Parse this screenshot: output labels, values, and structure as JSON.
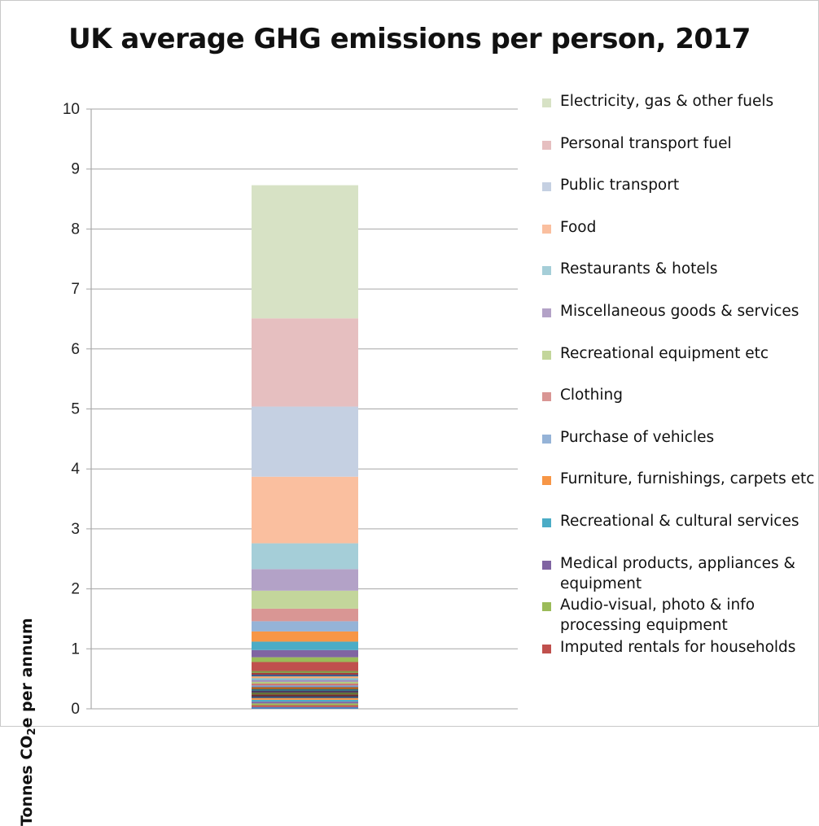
{
  "chart_data": {
    "type": "bar",
    "stacked": true,
    "title": "UK average GHG emissions per person, 2017",
    "ylabel_main": "Tonnes CO",
    "ylabel_sub": "2",
    "ylabel_rest": "e per annum",
    "xlabel": "",
    "ylim": [
      0,
      10
    ],
    "y_ticks": [
      "0",
      "1",
      "2",
      "3",
      "4",
      "5",
      "6",
      "7",
      "8",
      "9",
      "10"
    ],
    "grid": true,
    "legend_position": "right",
    "series": [
      {
        "name": "Imputed rentals for households",
        "value": 0.15,
        "color": "#c0504d"
      },
      {
        "name": "Audio-visual, photo & info processing equipment",
        "value": 0.08,
        "color": "#9bbb59"
      },
      {
        "name": "Medical products, appliances & equipment",
        "value": 0.12,
        "color": "#8064a2"
      },
      {
        "name": "Recreational & cultural services",
        "value": 0.14,
        "color": "#4bacc6"
      },
      {
        "name": "Furniture, furnishings, carpets etc",
        "value": 0.17,
        "color": "#f79646"
      },
      {
        "name": "Purchase of vehicles",
        "value": 0.17,
        "color": "#95b3d7"
      },
      {
        "name": "Clothing",
        "value": 0.21,
        "color": "#d99694"
      },
      {
        "name": "Recreational equipment etc",
        "value": 0.3,
        "color": "#c3d69b"
      },
      {
        "name": "Miscellaneous goods & services",
        "value": 0.36,
        "color": "#b3a2c7"
      },
      {
        "name": "Restaurants & hotels",
        "value": 0.43,
        "color": "#a5ced8"
      },
      {
        "name": "Food",
        "value": 1.11,
        "color": "#fabf9f"
      },
      {
        "name": "Public transport",
        "value": 1.17,
        "color": "#c5d0e2"
      },
      {
        "name": "Personal transport fuel",
        "value": 1.47,
        "color": "#e6bfc0"
      },
      {
        "name": "Electricity, gas & other fuels",
        "value": 2.22,
        "color": "#d7e2c5"
      }
    ],
    "unlabeled_small_segments": [
      {
        "value": 0.03,
        "color": "#4f81bd"
      },
      {
        "value": 0.03,
        "color": "#c0504d"
      },
      {
        "value": 0.03,
        "color": "#9bbb59"
      },
      {
        "value": 0.03,
        "color": "#8064a2"
      },
      {
        "value": 0.03,
        "color": "#4bacc6"
      },
      {
        "value": 0.03,
        "color": "#f79646"
      },
      {
        "value": 0.03,
        "color": "#2c4d75"
      },
      {
        "value": 0.03,
        "color": "#772c2a"
      },
      {
        "value": 0.03,
        "color": "#5f7530"
      },
      {
        "value": 0.03,
        "color": "#4d3b62"
      },
      {
        "value": 0.03,
        "color": "#276a7c"
      },
      {
        "value": 0.03,
        "color": "#b65708"
      },
      {
        "value": 0.03,
        "color": "#729aca"
      },
      {
        "value": 0.03,
        "color": "#cd7371"
      },
      {
        "value": 0.03,
        "color": "#b3cb81"
      },
      {
        "value": 0.03,
        "color": "#9f8ab8"
      },
      {
        "value": 0.03,
        "color": "#7ac0d3"
      },
      {
        "value": 0.03,
        "color": "#f9ab6b"
      },
      {
        "value": 0.03,
        "color": "#3a5f8f"
      },
      {
        "value": 0.03,
        "color": "#a33b38"
      },
      {
        "value": 0.03,
        "color": "#7d9a41"
      }
    ]
  },
  "legend_order": [
    13,
    12,
    11,
    10,
    9,
    8,
    7,
    6,
    5,
    4,
    3,
    2,
    1,
    0
  ]
}
